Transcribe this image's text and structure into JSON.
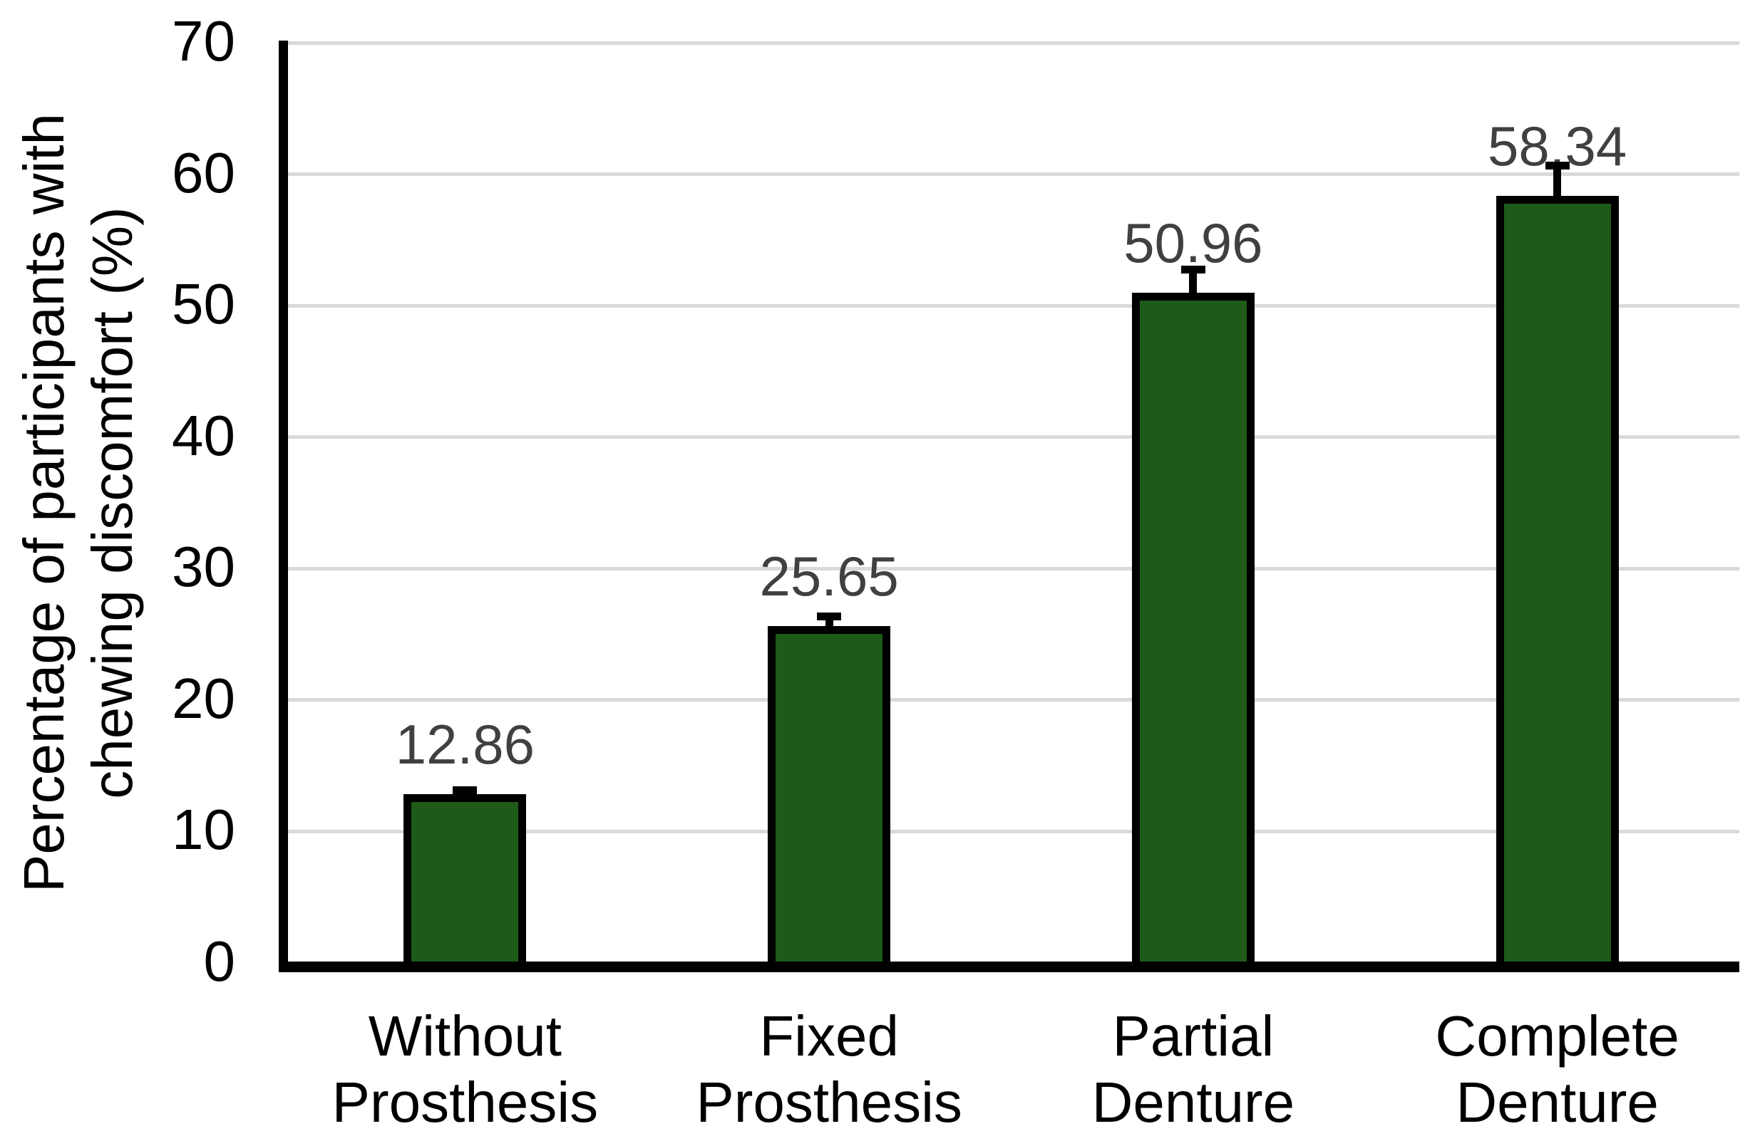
{
  "chart_data": {
    "type": "bar",
    "title": "",
    "ylabel_lines": [
      "Percentage of participants with",
      "chewing discomfort (%)"
    ],
    "ylabel": "Percentage of participants with chewing discomfort (%)",
    "xlabel": "",
    "categories": [
      "Without Prosthesis",
      "Fixed Prosthesis",
      "Partial Denture",
      "Complete Denture"
    ],
    "category_label_lines": [
      [
        "Without",
        "Prosthesis"
      ],
      [
        "Fixed",
        "Prosthesis"
      ],
      [
        "Partial",
        "Denture"
      ],
      [
        "Complete",
        "Denture"
      ]
    ],
    "values": [
      12.86,
      25.65,
      50.96,
      58.34
    ],
    "data_labels": [
      "12.86",
      "25.65",
      "50.96",
      "58.34"
    ],
    "error_up": [
      0.6,
      1.0,
      2.1,
      2.6
    ],
    "yticks": [
      0,
      10,
      20,
      30,
      40,
      50,
      60,
      70
    ],
    "ytick_labels": [
      "0",
      "10",
      "20",
      "30",
      "40",
      "50",
      "60",
      "70"
    ],
    "ylim": [
      0,
      70
    ],
    "grid": "horizontal",
    "legend": "none",
    "colors": {
      "bar_fill": "#1E5A18",
      "bar_border": "#000000",
      "gridline": "#D9D9D9",
      "axis": "#000000",
      "data_label": "#404040",
      "tick_label": "#000000",
      "error_bar": "#000000"
    }
  }
}
